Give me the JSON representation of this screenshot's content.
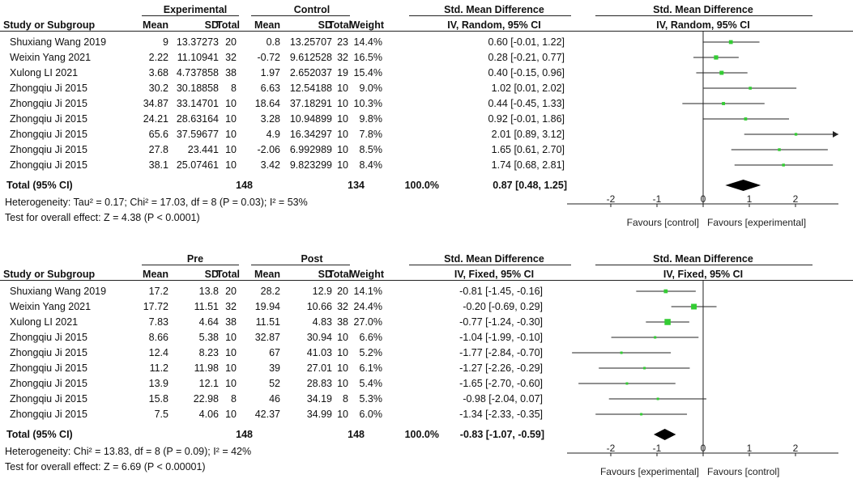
{
  "chart_data": [
    {
      "type": "forest",
      "group_headers": [
        "Experimental",
        "Control"
      ],
      "columns": [
        "Study or Subgroup",
        "Mean",
        "SD",
        "Total",
        "Mean",
        "SD",
        "Total",
        "Weight"
      ],
      "effect_header": "Std. Mean Difference",
      "effect_subheader": "IV, Random, 95% CI",
      "plot_header": "Std. Mean Difference",
      "plot_subheader": "IV, Random, 95% CI",
      "studies": [
        {
          "name": "Shuxiang Wang 2019",
          "m1": "9",
          "sd1": "13.37273",
          "n1": "20",
          "m2": "0.8",
          "sd2": "13.25707",
          "n2": "23",
          "weight": "14.4%",
          "ci_text": "0.60 [-0.01, 1.22]",
          "est": 0.6,
          "lo": -0.01,
          "hi": 1.22
        },
        {
          "name": "Weixin Yang 2021",
          "m1": "2.22",
          "sd1": "11.10941",
          "n1": "32",
          "m2": "-0.72",
          "sd2": "9.612528",
          "n2": "32",
          "weight": "16.5%",
          "ci_text": "0.28 [-0.21, 0.77]",
          "est": 0.28,
          "lo": -0.21,
          "hi": 0.77
        },
        {
          "name": "Xulong LI 2021",
          "m1": "3.68",
          "sd1": "4.737858",
          "n1": "38",
          "m2": "1.97",
          "sd2": "2.652037",
          "n2": "19",
          "weight": "15.4%",
          "ci_text": "0.40 [-0.15, 0.96]",
          "est": 0.4,
          "lo": -0.15,
          "hi": 0.96
        },
        {
          "name": "Zhongqiu Ji 2015",
          "m1": "30.2",
          "sd1": "30.18858",
          "n1": "8",
          "m2": "6.63",
          "sd2": "12.54188",
          "n2": "10",
          "weight": "9.0%",
          "ci_text": "1.02 [0.01, 2.02]",
          "est": 1.02,
          "lo": 0.01,
          "hi": 2.02
        },
        {
          "name": "Zhongqiu Ji 2015",
          "m1": "34.87",
          "sd1": "33.14701",
          "n1": "10",
          "m2": "18.64",
          "sd2": "37.18291",
          "n2": "10",
          "weight": "10.3%",
          "ci_text": "0.44 [-0.45, 1.33]",
          "est": 0.44,
          "lo": -0.45,
          "hi": 1.33
        },
        {
          "name": "Zhongqiu Ji 2015",
          "m1": "24.21",
          "sd1": "28.63164",
          "n1": "10",
          "m2": "3.28",
          "sd2": "10.94899",
          "n2": "10",
          "weight": "9.8%",
          "ci_text": "0.92 [-0.01, 1.86]",
          "est": 0.92,
          "lo": -0.01,
          "hi": 1.86
        },
        {
          "name": "Zhongqiu Ji 2015",
          "m1": "65.6",
          "sd1": "37.59677",
          "n1": "10",
          "m2": "4.9",
          "sd2": "16.34297",
          "n2": "10",
          "weight": "7.8%",
          "ci_text": "2.01 [0.89, 3.12]",
          "est": 2.01,
          "lo": 0.89,
          "hi": 3.12
        },
        {
          "name": "Zhongqiu Ji 2015",
          "m1": "27.8",
          "sd1": "23.441",
          "n1": "10",
          "m2": "-2.06",
          "sd2": "6.992989",
          "n2": "10",
          "weight": "8.5%",
          "ci_text": "1.65 [0.61, 2.70]",
          "est": 1.65,
          "lo": 0.61,
          "hi": 2.7
        },
        {
          "name": "Zhongqiu Ji 2015",
          "m1": "38.1",
          "sd1": "25.07461",
          "n1": "10",
          "m2": "3.42",
          "sd2": "9.823299",
          "n2": "10",
          "weight": "8.4%",
          "ci_text": "1.74 [0.68, 2.81]",
          "est": 1.74,
          "lo": 0.68,
          "hi": 2.81
        }
      ],
      "total": {
        "label": "Total (95% CI)",
        "n1": "148",
        "n2": "134",
        "weight": "100.0%",
        "ci_text": "0.87 [0.48, 1.25]",
        "est": 0.87,
        "lo": 0.48,
        "hi": 1.25
      },
      "heterogeneity": "Heterogeneity: Tau² = 0.17; Chi² = 17.03, df = 8 (P = 0.03); I² = 53%",
      "overall_effect": "Test for overall effect: Z = 4.38 (P < 0.0001)",
      "xlim": [
        -3,
        3
      ],
      "ticks": [
        -2,
        -1,
        0,
        1,
        2
      ],
      "tick_labels": [
        "-2",
        "-1",
        "0",
        "1",
        "2"
      ],
      "favours_left": "Favours [control]",
      "favours_right": "Favours [experimental]",
      "marker_color": "#33cc33"
    },
    {
      "type": "forest",
      "group_headers": [
        "Pre",
        "Post"
      ],
      "columns": [
        "Study or Subgroup",
        "Mean",
        "SD",
        "Total",
        "Mean",
        "SD",
        "Total",
        "Weight"
      ],
      "effect_header": "Std. Mean Difference",
      "effect_subheader": "IV, Fixed, 95% CI",
      "plot_header": "Std. Mean Difference",
      "plot_subheader": "IV, Fixed, 95% CI",
      "studies": [
        {
          "name": "Shuxiang Wang 2019",
          "m1": "17.2",
          "sd1": "13.8",
          "n1": "20",
          "m2": "28.2",
          "sd2": "12.9",
          "n2": "20",
          "weight": "14.1%",
          "ci_text": "-0.81 [-1.45, -0.16]",
          "est": -0.81,
          "lo": -1.45,
          "hi": -0.16
        },
        {
          "name": "Weixin Yang 2021",
          "m1": "17.72",
          "sd1": "11.51",
          "n1": "32",
          "m2": "19.94",
          "sd2": "10.66",
          "n2": "32",
          "weight": "24.4%",
          "ci_text": "-0.20 [-0.69, 0.29]",
          "est": -0.2,
          "lo": -0.69,
          "hi": 0.29
        },
        {
          "name": "Xulong LI 2021",
          "m1": "7.83",
          "sd1": "4.64",
          "n1": "38",
          "m2": "11.51",
          "sd2": "4.83",
          "n2": "38",
          "weight": "27.0%",
          "ci_text": "-0.77 [-1.24, -0.30]",
          "est": -0.77,
          "lo": -1.24,
          "hi": -0.3
        },
        {
          "name": "Zhongqiu Ji 2015",
          "m1": "8.66",
          "sd1": "5.38",
          "n1": "10",
          "m2": "32.87",
          "sd2": "30.94",
          "n2": "10",
          "weight": "6.6%",
          "ci_text": "-1.04 [-1.99, -0.10]",
          "est": -1.04,
          "lo": -1.99,
          "hi": -0.1
        },
        {
          "name": "Zhongqiu Ji 2015",
          "m1": "12.4",
          "sd1": "8.23",
          "n1": "10",
          "m2": "67",
          "sd2": "41.03",
          "n2": "10",
          "weight": "5.2%",
          "ci_text": "-1.77 [-2.84, -0.70]",
          "est": -1.77,
          "lo": -2.84,
          "hi": -0.7
        },
        {
          "name": "Zhongqiu Ji 2015",
          "m1": "11.2",
          "sd1": "11.98",
          "n1": "10",
          "m2": "39",
          "sd2": "27.01",
          "n2": "10",
          "weight": "6.1%",
          "ci_text": "-1.27 [-2.26, -0.29]",
          "est": -1.27,
          "lo": -2.26,
          "hi": -0.29
        },
        {
          "name": "Zhongqiu Ji 2015",
          "m1": "13.9",
          "sd1": "12.1",
          "n1": "10",
          "m2": "52",
          "sd2": "28.83",
          "n2": "10",
          "weight": "5.4%",
          "ci_text": "-1.65 [-2.70, -0.60]",
          "est": -1.65,
          "lo": -2.7,
          "hi": -0.6
        },
        {
          "name": "Zhongqiu Ji 2015",
          "m1": "15.8",
          "sd1": "22.98",
          "n1": "8",
          "m2": "46",
          "sd2": "34.19",
          "n2": "8",
          "weight": "5.3%",
          "ci_text": "-0.98 [-2.04, 0.07]",
          "est": -0.98,
          "lo": -2.04,
          "hi": 0.07
        },
        {
          "name": "Zhongqiu Ji 2015",
          "m1": "7.5",
          "sd1": "4.06",
          "n1": "10",
          "m2": "42.37",
          "sd2": "34.99",
          "n2": "10",
          "weight": "6.0%",
          "ci_text": "-1.34 [-2.33, -0.35]",
          "est": -1.34,
          "lo": -2.33,
          "hi": -0.35
        }
      ],
      "total": {
        "label": "Total (95% CI)",
        "n1": "148",
        "n2": "148",
        "weight": "100.0%",
        "ci_text": "-0.83 [-1.07, -0.59]",
        "est": -0.83,
        "lo": -1.07,
        "hi": -0.59
      },
      "heterogeneity": "Heterogeneity: Chi² = 13.83, df = 8 (P = 0.09); I² = 42%",
      "overall_effect": "Test for overall effect: Z = 6.69 (P < 0.00001)",
      "xlim": [
        -3,
        3
      ],
      "ticks": [
        -2,
        -1,
        0,
        1,
        2
      ],
      "tick_labels": [
        "-2",
        "-1",
        "0",
        "1",
        "2"
      ],
      "favours_left": "Favours [experimental]",
      "favours_right": "Favours [control]",
      "marker_color": "#33cc33"
    }
  ]
}
